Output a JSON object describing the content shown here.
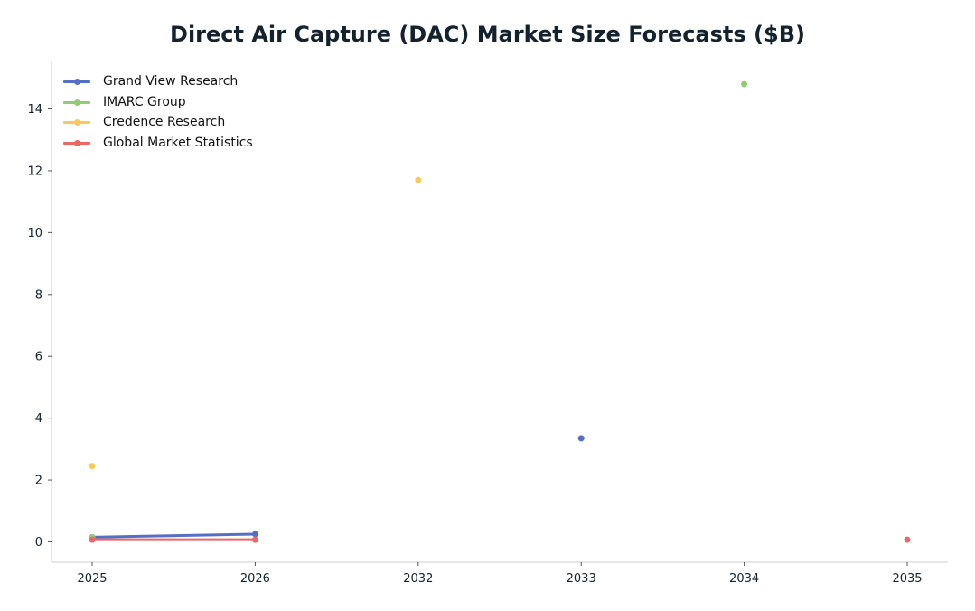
{
  "chart_data": {
    "type": "line",
    "title": "Direct Air Capture (DAC) Market Size Forecasts ($B)",
    "xlabel": "",
    "ylabel": "",
    "categories": [
      "2025",
      "2026",
      "2032",
      "2033",
      "2034",
      "2035"
    ],
    "ylim": [
      -0.65,
      15.5
    ],
    "yticks": [
      0,
      2,
      4,
      6,
      8,
      10,
      12,
      14
    ],
    "grid": false,
    "legend_position": "top-left",
    "series": [
      {
        "name": "Grand View Research",
        "color": "#5470c6",
        "values": [
          0.15,
          0.25,
          null,
          3.35,
          null,
          null
        ]
      },
      {
        "name": "IMARC Group",
        "color": "#91cc75",
        "values": [
          0.15,
          null,
          null,
          null,
          14.8,
          null
        ]
      },
      {
        "name": "Credence Research",
        "color": "#fac858",
        "values": [
          2.45,
          null,
          11.7,
          null,
          null,
          null
        ]
      },
      {
        "name": "Global Market Statistics",
        "color": "#ee6666",
        "values": [
          0.07,
          0.07,
          null,
          null,
          null,
          0.07
        ]
      }
    ]
  }
}
